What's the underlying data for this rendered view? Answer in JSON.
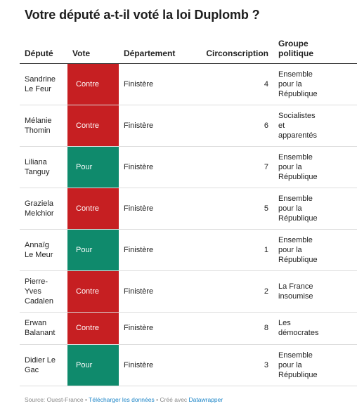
{
  "title": "Votre député a-t-il voté la loi Duplomb ?",
  "columns": {
    "depute": "Député",
    "vote": "Vote",
    "departement": "Département",
    "circonscription": "Circonscription",
    "groupe_line1": "Groupe",
    "groupe_line2": "politique"
  },
  "vote_colors": {
    "Contre": "#c61f22",
    "Pour": "#0f8a6c"
  },
  "rows": [
    {
      "depute_line1": "Sandrine",
      "depute_line2": "Le Feur",
      "depute_line3": "",
      "vote": "Contre",
      "departement": "Finistère",
      "circonscription": "4",
      "groupe_line1": "Ensemble",
      "groupe_line2": "pour la",
      "groupe_line3": "République"
    },
    {
      "depute_line1": "Mélanie",
      "depute_line2": "Thomin",
      "depute_line3": "",
      "vote": "Contre",
      "departement": "Finistère",
      "circonscription": "6",
      "groupe_line1": "Socialistes",
      "groupe_line2": "et",
      "groupe_line3": "apparentés"
    },
    {
      "depute_line1": "Liliana",
      "depute_line2": "Tanguy",
      "depute_line3": "",
      "vote": "Pour",
      "departement": "Finistère",
      "circonscription": "7",
      "groupe_line1": "Ensemble",
      "groupe_line2": "pour la",
      "groupe_line3": "République"
    },
    {
      "depute_line1": "Graziela",
      "depute_line2": "Melchior",
      "depute_line3": "",
      "vote": "Contre",
      "departement": "Finistère",
      "circonscription": "5",
      "groupe_line1": "Ensemble",
      "groupe_line2": "pour la",
      "groupe_line3": "République"
    },
    {
      "depute_line1": "Annaïg",
      "depute_line2": "Le Meur",
      "depute_line3": "",
      "vote": "Pour",
      "departement": "Finistère",
      "circonscription": "1",
      "groupe_line1": "Ensemble",
      "groupe_line2": "pour la",
      "groupe_line3": "République"
    },
    {
      "depute_line1": "Pierre-",
      "depute_line2": "Yves",
      "depute_line3": "Cadalen",
      "vote": "Contre",
      "departement": "Finistère",
      "circonscription": "2",
      "groupe_line1": "La France",
      "groupe_line2": "insoumise",
      "groupe_line3": ""
    },
    {
      "depute_line1": "Erwan",
      "depute_line2": "Balanant",
      "depute_line3": "",
      "vote": "Contre",
      "departement": "Finistère",
      "circonscription": "8",
      "groupe_line1": "Les",
      "groupe_line2": "démocrates",
      "groupe_line3": ""
    },
    {
      "depute_line1": "Didier Le",
      "depute_line2": "Gac",
      "depute_line3": "",
      "vote": "Pour",
      "departement": "Finistère",
      "circonscription": "3",
      "groupe_line1": "Ensemble",
      "groupe_line2": "pour la",
      "groupe_line3": "République"
    }
  ],
  "footer": {
    "source": "Source: Ouest-France",
    "sep1": " • ",
    "download_link": "Télécharger les données",
    "sep2": " • ",
    "created_with": "Créé avec ",
    "datawrapper_link": "Datawrapper"
  }
}
